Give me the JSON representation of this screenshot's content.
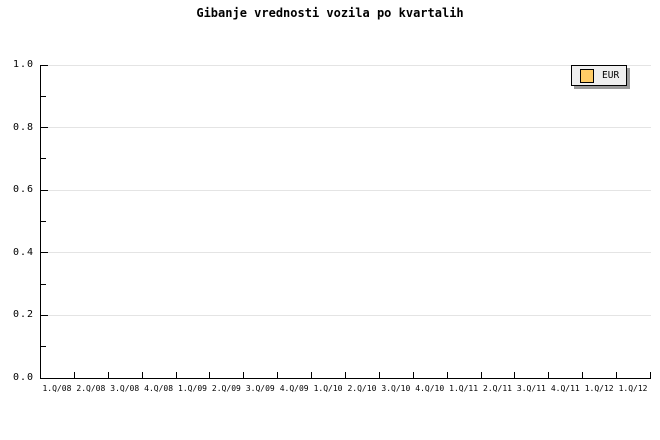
{
  "title": "Gibanje vrednosti vozila po kvartalih",
  "legend": {
    "label": "EUR",
    "swatch_color": "#FFCC66"
  },
  "colors": {
    "axis": "#000000",
    "grid": "#e4e4e4",
    "text": "#000000",
    "background": "#ffffff",
    "legend_bg": "#efefef",
    "legend_border": "#000000",
    "legend_shadow": "#9a9a9a"
  },
  "y_axis": {
    "tick_labels": [
      "0.0",
      "0.2",
      "0.4",
      "0.6",
      "0.8",
      "1.0"
    ],
    "minor_tick_values": [
      0.1,
      0.3,
      0.5,
      0.7,
      0.9
    ],
    "min": 0,
    "max": 1
  },
  "x_axis": {
    "categories": [
      "1.Q/08",
      "2.Q/08",
      "3.Q/08",
      "4.Q/08",
      "1.Q/09",
      "2.Q/09",
      "3.Q/09",
      "4.Q/09",
      "1.Q/10",
      "2.Q/10",
      "3.Q/10",
      "4.Q/10",
      "1.Q/11",
      "2.Q/11",
      "3.Q/11",
      "4.Q/11",
      "1.Q/12",
      "1.Q/12"
    ],
    "tick_count": 18
  },
  "chart_data": {
    "type": "line",
    "title": "Gibanje vrednosti vozila po kvartalih",
    "categories": [
      "1.Q/08",
      "2.Q/08",
      "3.Q/08",
      "4.Q/08",
      "1.Q/09",
      "2.Q/09",
      "3.Q/09",
      "4.Q/09",
      "1.Q/10",
      "2.Q/10",
      "3.Q/10",
      "4.Q/10",
      "1.Q/11",
      "2.Q/11",
      "3.Q/11",
      "4.Q/11",
      "1.Q/12",
      "1.Q/12"
    ],
    "series": [
      {
        "name": "EUR",
        "color": "#FFCC66",
        "values": []
      }
    ],
    "xlabel": "",
    "ylabel": "",
    "ylim": [
      0,
      1
    ],
    "yticks": [
      0.0,
      0.2,
      0.4,
      0.6,
      0.8,
      1.0
    ],
    "grid": true,
    "legend_position": "top-right"
  }
}
